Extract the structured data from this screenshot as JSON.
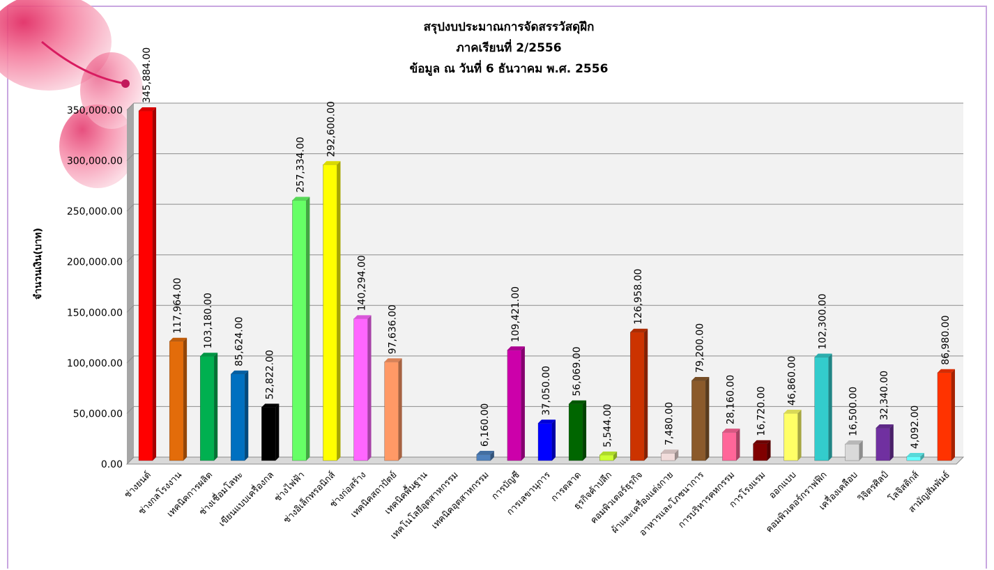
{
  "chart_data": {
    "type": "bar",
    "title": "สรุปงบประมาณการจัดสรรวัสดุฝึก",
    "subtitle": [
      "ภาคเรียนที่ 2/2556",
      "ข้อมูล ณ วันที่ 6 ธันวาคม พ.ศ. 2556"
    ],
    "ylabel": "จำนวนเงิน(บาท)",
    "xlabel": "",
    "ylim": [
      0,
      350000
    ],
    "yticks": [
      "0.00",
      "50,000.00",
      "100,000.00",
      "150,000.00",
      "200,000.00",
      "250,000.00",
      "300,000.00",
      "350,000.00"
    ],
    "grid": true,
    "legend": "none",
    "categories": [
      "ช่างยนต์",
      "ช่างกลโรงงาน",
      "เทคนิคการผลิต",
      "ช่างเชื่อมโลหะ",
      "เขียนแบบเครื่องกล",
      "ช่างไฟฟ้า",
      "ช่างอิเล็กทรอนิกส์",
      "ช่างก่อสร้าง",
      "เทคนิคสถาปัตย์",
      "เทคนิคพื้นฐาน",
      "เทคโนโลยีอุตสาหกรรม",
      "เทคนิคอุตสาหกรรม",
      "การบัญชี",
      "การเลขานุการ",
      "การตลาด",
      "ธุรกิจค้าปลีก",
      "คอมพิวเตอร์ธุรกิจ",
      "ผ้าและเครื่องแต่งกาย",
      "อาหารและโภชนาการ",
      "การบริหารคหกรรม",
      "การโรงแรม",
      "ออกแบบ",
      "คอมพิวเตอร์กราฟฟิก",
      "เครื่องเคลือบ",
      "วิจิตรศิลป์",
      "โลจิสติกส์",
      "สามัญสัมพันธ์"
    ],
    "values": [
      345884,
      117964,
      103180,
      85624,
      52822,
      257334,
      292600,
      140294,
      97636,
      null,
      null,
      6160,
      109421,
      37050,
      56069,
      5544,
      126958,
      7480,
      79200,
      28160,
      16720,
      46860,
      102300,
      16500,
      32340,
      4092,
      86980
    ],
    "value_labels": [
      "345,884.00",
      "117,964.00",
      "103,180.00",
      "85,624.00",
      "52,822.00",
      "257,334.00",
      "292,600.00",
      "140,294.00",
      "97,636.00",
      "",
      "",
      "6,160.00",
      "109,421.00",
      "37,050.00",
      "56,069.00",
      "5,544.00",
      "126,958.00",
      "7,480.00",
      "79,200.00",
      "28,160.00",
      "16,720.00",
      "46,860.00",
      "102,300.00",
      "16,500.00",
      "32,340.00",
      "4,092.00",
      "86,980.00"
    ],
    "colors": [
      "#ff0000",
      "#e36c0a",
      "#00b050",
      "#0070c0",
      "#000000",
      "#66ff66",
      "#ffff00",
      "#ff66ff",
      "#ff9966",
      "#ffffff",
      "#ffffff",
      "#4f81bd",
      "#cc00aa",
      "#0000ff",
      "#006600",
      "#ccff33",
      "#cc3300",
      "#f2dcdb",
      "#8b5a2b",
      "#ff6699",
      "#800000",
      "#ffff66",
      "#33cccc",
      "#d9d9d9",
      "#7030a0",
      "#66ffff",
      "#ff3300"
    ]
  }
}
